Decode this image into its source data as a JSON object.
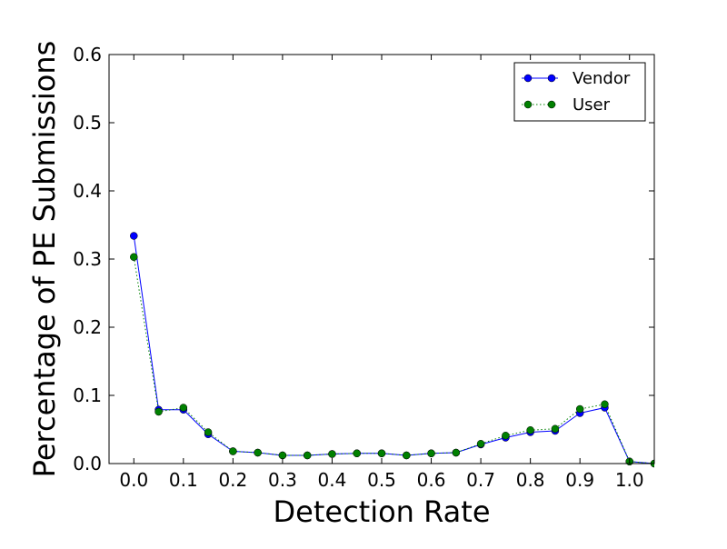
{
  "chart_data": {
    "type": "line",
    "title": "",
    "xlabel": "Detection Rate",
    "ylabel": "Percentage of PE Submissions",
    "xlim": [
      -0.05,
      1.05
    ],
    "ylim": [
      0,
      0.6
    ],
    "xticks": [
      0.0,
      0.1,
      0.2,
      0.3,
      0.4,
      0.5,
      0.6,
      0.7,
      0.8,
      0.9,
      1.0
    ],
    "xtick_labels": [
      "0.0",
      "0.1",
      "0.2",
      "0.3",
      "0.4",
      "0.5",
      "0.6",
      "0.7",
      "0.8",
      "0.9",
      "1.0"
    ],
    "yticks": [
      0.0,
      0.1,
      0.2,
      0.3,
      0.4,
      0.5,
      0.6
    ],
    "ytick_labels": [
      "0.0",
      "0.1",
      "0.2",
      "0.3",
      "0.4",
      "0.5",
      "0.6"
    ],
    "grid": false,
    "legend": {
      "position": "top-right"
    },
    "x": [
      0.0,
      0.05,
      0.1,
      0.15,
      0.2,
      0.25,
      0.3,
      0.35,
      0.4,
      0.45,
      0.5,
      0.55,
      0.6,
      0.65,
      0.7,
      0.75,
      0.8,
      0.85,
      0.9,
      0.95,
      1.0,
      1.05
    ],
    "series": [
      {
        "name": "Vendor",
        "color": "#0000ff",
        "linestyle": "solid",
        "marker": "circle",
        "values": [
          0.334,
          0.079,
          0.079,
          0.043,
          0.018,
          0.016,
          0.012,
          0.012,
          0.014,
          0.015,
          0.015,
          0.012,
          0.015,
          0.016,
          0.028,
          0.038,
          0.046,
          0.048,
          0.074,
          0.082,
          0.003,
          0.0
        ]
      },
      {
        "name": "User",
        "color": "#008000",
        "linestyle": "dotted",
        "marker": "circle",
        "values": [
          0.303,
          0.076,
          0.082,
          0.046,
          0.018,
          0.016,
          0.012,
          0.012,
          0.014,
          0.015,
          0.015,
          0.012,
          0.015,
          0.016,
          0.029,
          0.041,
          0.049,
          0.051,
          0.08,
          0.087,
          0.003,
          0.0
        ]
      }
    ]
  }
}
